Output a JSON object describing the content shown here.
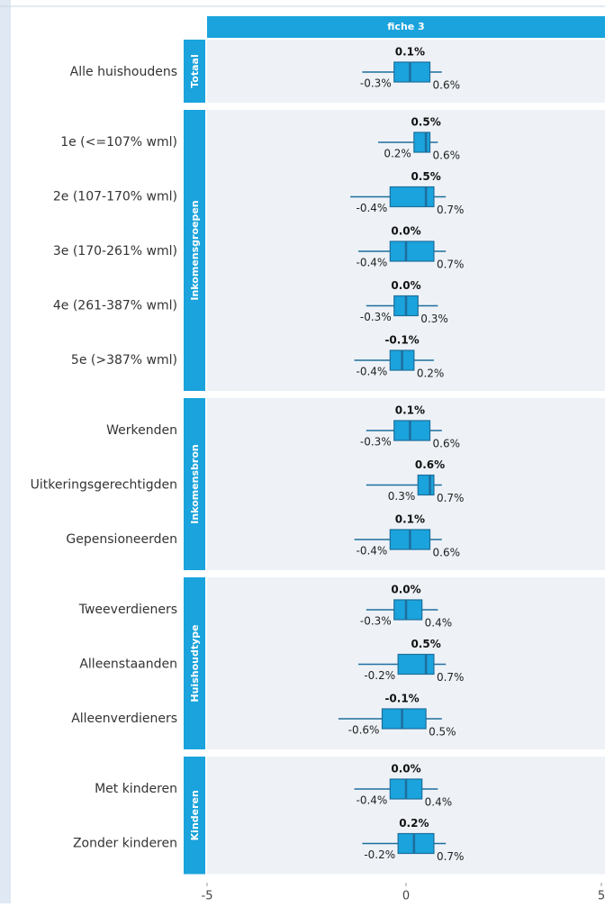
{
  "chart_data": {
    "type": "box",
    "facet_title": "fiche 3",
    "xlim": [
      -5,
      5
    ],
    "xticks": [
      -5,
      0,
      5
    ],
    "color": "#1aa3dc",
    "edge_color": "#1d6e9c",
    "strip_color": "#1aa3dc",
    "groups": [
      {
        "name": "Totaal",
        "rows": [
          {
            "category": "Alle huishoudens",
            "whisker_low": -1.1,
            "q1": -0.3,
            "median": 0.1,
            "q3": 0.6,
            "whisker_high": 0.9,
            "q1_label": "-0.3%",
            "median_label": "0.1%",
            "q3_label": "0.6%"
          }
        ]
      },
      {
        "name": "Inkomensgroepen",
        "rows": [
          {
            "category": "1e (<=107% wml)",
            "whisker_low": -0.7,
            "q1": 0.2,
            "median": 0.5,
            "q3": 0.6,
            "whisker_high": 0.8,
            "q1_label": "0.2%",
            "median_label": "0.5%",
            "q3_label": "0.6%"
          },
          {
            "category": "2e (107-170% wml)",
            "whisker_low": -1.4,
            "q1": -0.4,
            "median": 0.5,
            "q3": 0.7,
            "whisker_high": 1.0,
            "q1_label": "-0.4%",
            "median_label": "0.5%",
            "q3_label": "0.7%"
          },
          {
            "category": "3e (170-261% wml)",
            "whisker_low": -1.2,
            "q1": -0.4,
            "median": 0.0,
            "q3": 0.7,
            "whisker_high": 1.0,
            "q1_label": "-0.4%",
            "median_label": "0.0%",
            "q3_label": "0.7%"
          },
          {
            "category": "4e (261-387% wml)",
            "whisker_low": -1.0,
            "q1": -0.3,
            "median": 0.0,
            "q3": 0.3,
            "whisker_high": 0.8,
            "q1_label": "-0.3%",
            "median_label": "0.0%",
            "q3_label": "0.3%"
          },
          {
            "category": "5e (>387% wml)",
            "whisker_low": -1.3,
            "q1": -0.4,
            "median": -0.1,
            "q3": 0.2,
            "whisker_high": 0.7,
            "q1_label": "-0.4%",
            "median_label": "-0.1%",
            "q3_label": "0.2%"
          }
        ]
      },
      {
        "name": "Inkomensbron",
        "rows": [
          {
            "category": "Werkenden",
            "whisker_low": -1.0,
            "q1": -0.3,
            "median": 0.1,
            "q3": 0.6,
            "whisker_high": 0.9,
            "q1_label": "-0.3%",
            "median_label": "0.1%",
            "q3_label": "0.6%"
          },
          {
            "category": "Uitkeringsgerechtigden",
            "whisker_low": -1.0,
            "q1": 0.3,
            "median": 0.6,
            "q3": 0.7,
            "whisker_high": 0.9,
            "q1_label": "0.3%",
            "median_label": "0.6%",
            "q3_label": "0.7%"
          },
          {
            "category": "Gepensioneerden",
            "whisker_low": -1.3,
            "q1": -0.4,
            "median": 0.1,
            "q3": 0.6,
            "whisker_high": 0.9,
            "q1_label": "-0.4%",
            "median_label": "0.1%",
            "q3_label": "0.6%"
          }
        ]
      },
      {
        "name": "Huishoudtype",
        "rows": [
          {
            "category": "Tweeverdieners",
            "whisker_low": -1.0,
            "q1": -0.3,
            "median": 0.0,
            "q3": 0.4,
            "whisker_high": 0.8,
            "q1_label": "-0.3%",
            "median_label": "0.0%",
            "q3_label": "0.4%"
          },
          {
            "category": "Alleenstaanden",
            "whisker_low": -1.2,
            "q1": -0.2,
            "median": 0.5,
            "q3": 0.7,
            "whisker_high": 1.0,
            "q1_label": "-0.2%",
            "median_label": "0.5%",
            "q3_label": "0.7%"
          },
          {
            "category": "Alleenverdieners",
            "whisker_low": -1.7,
            "q1": -0.6,
            "median": -0.1,
            "q3": 0.5,
            "whisker_high": 0.9,
            "q1_label": "-0.6%",
            "median_label": "-0.1%",
            "q3_label": "0.5%"
          }
        ]
      },
      {
        "name": "Kinderen",
        "rows": [
          {
            "category": "Met kinderen",
            "whisker_low": -1.3,
            "q1": -0.4,
            "median": 0.0,
            "q3": 0.4,
            "whisker_high": 0.8,
            "q1_label": "-0.4%",
            "median_label": "0.0%",
            "q3_label": "0.4%"
          },
          {
            "category": "Zonder kinderen",
            "whisker_low": -1.1,
            "q1": -0.2,
            "median": 0.2,
            "q3": 0.7,
            "whisker_high": 1.0,
            "q1_label": "-0.2%",
            "median_label": "0.2%",
            "q3_label": "0.7%"
          }
        ]
      }
    ]
  }
}
